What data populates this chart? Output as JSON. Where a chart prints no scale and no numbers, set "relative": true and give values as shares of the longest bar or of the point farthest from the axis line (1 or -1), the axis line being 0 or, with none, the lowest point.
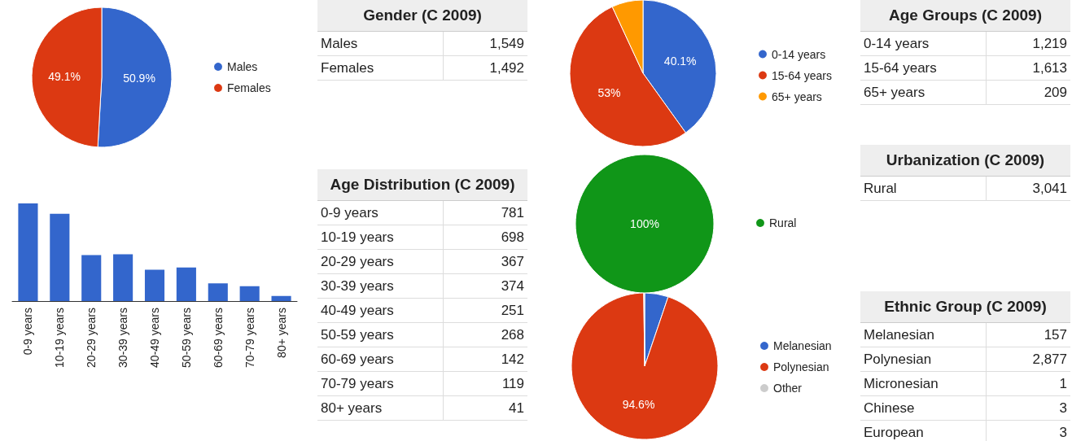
{
  "chart_data": [
    {
      "type": "pie",
      "categories": [
        "Males",
        "Females"
      ],
      "values": [
        50.9,
        49.1
      ],
      "colors": [
        "#3366cc",
        "#dc3912"
      ],
      "value_labels": [
        "50.9%",
        "49.1%"
      ],
      "legend": "right"
    },
    {
      "type": "other",
      "title": "Gender (C 2009)",
      "categories": [
        "Males",
        "Females"
      ],
      "values": [
        1549,
        1492
      ],
      "value_labels": [
        "1,549",
        "1,492"
      ]
    },
    {
      "type": "pie",
      "categories": [
        "0-14 years",
        "15-64 years",
        "65+ years"
      ],
      "values": [
        40.1,
        53,
        6.9
      ],
      "colors": [
        "#3366cc",
        "#dc3912",
        "#ff9900"
      ],
      "value_labels": [
        "40.1%",
        "53%",
        null
      ],
      "legend": "right"
    },
    {
      "type": "other",
      "title": "Age Groups (C 2009)",
      "categories": [
        "0-14 years",
        "15-64 years",
        "65+ years"
      ],
      "values": [
        1219,
        1613,
        209
      ],
      "value_labels": [
        "1,219",
        "1,613",
        "209"
      ]
    },
    {
      "type": "bar",
      "relative": true,
      "categories": [
        "0-9 years",
        "10-19 years",
        "20-29 years",
        "30-39 years",
        "40-49 years",
        "50-59 years",
        "60-69 years",
        "70-79 years",
        "80+ years"
      ],
      "values": [
        1,
        0.894,
        0.47,
        0.479,
        0.321,
        0.343,
        0.182,
        0.152,
        0.052
      ],
      "color": "#3366cc",
      "legend": false
    },
    {
      "type": "other",
      "title": "Age Distribution (C 2009)",
      "categories": [
        "0-9 years",
        "10-19 years",
        "20-29 years",
        "30-39 years",
        "40-49 years",
        "50-59 years",
        "60-69 years",
        "70-79 years",
        "80+ years"
      ],
      "values": [
        781,
        698,
        367,
        374,
        251,
        268,
        142,
        119,
        41
      ],
      "data_labels": true
    },
    {
      "type": "pie",
      "categories": [
        "Rural"
      ],
      "values": [
        100
      ],
      "colors": [
        "#109618"
      ],
      "value_labels": [
        "100%"
      ],
      "legend": "right"
    },
    {
      "type": "other",
      "title": "Urbanization (C 2009)",
      "categories": [
        "Rural"
      ],
      "values": [
        3041
      ],
      "value_labels": [
        "3,041"
      ]
    },
    {
      "type": "pie",
      "categories": [
        "Melanesian",
        "Polynesian",
        "Other"
      ],
      "values": [
        5.2,
        94.6,
        0.2
      ],
      "colors": [
        "#3366cc",
        "#dc3912",
        "#cccccc"
      ],
      "value_labels": [
        null,
        "94.6%",
        null
      ],
      "legend": "right"
    },
    {
      "type": "other",
      "title": "Ethnic Group (C 2009)",
      "categories": [
        "Melanesian",
        "Polynesian",
        "Micronesian",
        "Chinese",
        "European"
      ],
      "values": [
        157,
        2877,
        1,
        3,
        3
      ],
      "value_labels": [
        "157",
        "2,877",
        "1",
        "3",
        "3"
      ]
    }
  ]
}
